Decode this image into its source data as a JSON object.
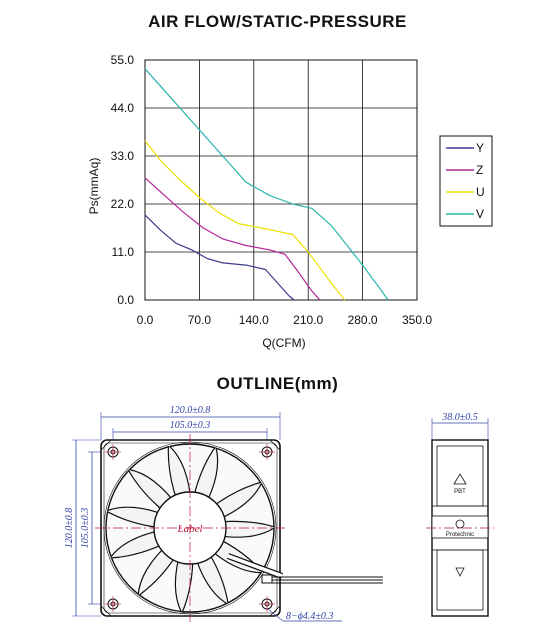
{
  "titles": {
    "chart": "AIR FLOW/STATIC-PRESSURE",
    "outline": "OUTLINE(mm)"
  },
  "chart_data": {
    "type": "line",
    "title": "AIR FLOW/STATIC-PRESSURE",
    "xlabel": "Q(CFM)",
    "ylabel": "Ps(mmAq)",
    "xlim": [
      0,
      350
    ],
    "ylim": [
      0,
      55
    ],
    "xticks": [
      "0.0",
      "70.0",
      "140.0",
      "210.0",
      "280.0",
      "350.0"
    ],
    "yticks": [
      "0.0",
      "11.0",
      "22.0",
      "33.0",
      "44.0",
      "55.0"
    ],
    "grid": true,
    "legend_position": "right",
    "series": [
      {
        "name": "Y",
        "color": "#3b3b8f",
        "points": [
          [
            0,
            19.5
          ],
          [
            20,
            16
          ],
          [
            40,
            13
          ],
          [
            60,
            11.5
          ],
          [
            80,
            9.5
          ],
          [
            100,
            8.5
          ],
          [
            130,
            8
          ],
          [
            155,
            7
          ],
          [
            170,
            4
          ],
          [
            185,
            1
          ],
          [
            192,
            0
          ]
        ]
      },
      {
        "name": "Z",
        "color": "#b5269a",
        "points": [
          [
            0,
            28
          ],
          [
            25,
            24
          ],
          [
            50,
            20
          ],
          [
            75,
            16.5
          ],
          [
            100,
            14
          ],
          [
            130,
            12.5
          ],
          [
            160,
            11.5
          ],
          [
            180,
            10.5
          ],
          [
            195,
            7
          ],
          [
            215,
            2
          ],
          [
            225,
            0
          ]
        ]
      },
      {
        "name": "U",
        "color": "#ede000",
        "points": [
          [
            0,
            36.5
          ],
          [
            20,
            32
          ],
          [
            45,
            27.5
          ],
          [
            70,
            23.5
          ],
          [
            95,
            20
          ],
          [
            120,
            17.5
          ],
          [
            150,
            16.5
          ],
          [
            190,
            15
          ],
          [
            210,
            11
          ],
          [
            235,
            5
          ],
          [
            257,
            0
          ]
        ]
      },
      {
        "name": "V",
        "color": "#2ab6ad",
        "points": [
          [
            0,
            53
          ],
          [
            35,
            46
          ],
          [
            70,
            39
          ],
          [
            100,
            33
          ],
          [
            130,
            27
          ],
          [
            160,
            24
          ],
          [
            190,
            22
          ],
          [
            215,
            21
          ],
          [
            240,
            17
          ],
          [
            280,
            8
          ],
          [
            313,
            0
          ]
        ]
      }
    ]
  },
  "outline": {
    "front": {
      "width_outer": "120.0±0.8",
      "width_inner": "105.0±0.3",
      "height_outer": "120.0±0.8",
      "height_inner": "105.0±0.3",
      "holes": "8−ϕ4.4±0.3",
      "label": "Label"
    },
    "side": {
      "depth": "38.0±0.5",
      "logo": "Protechnic",
      "mark": "PBT"
    }
  }
}
